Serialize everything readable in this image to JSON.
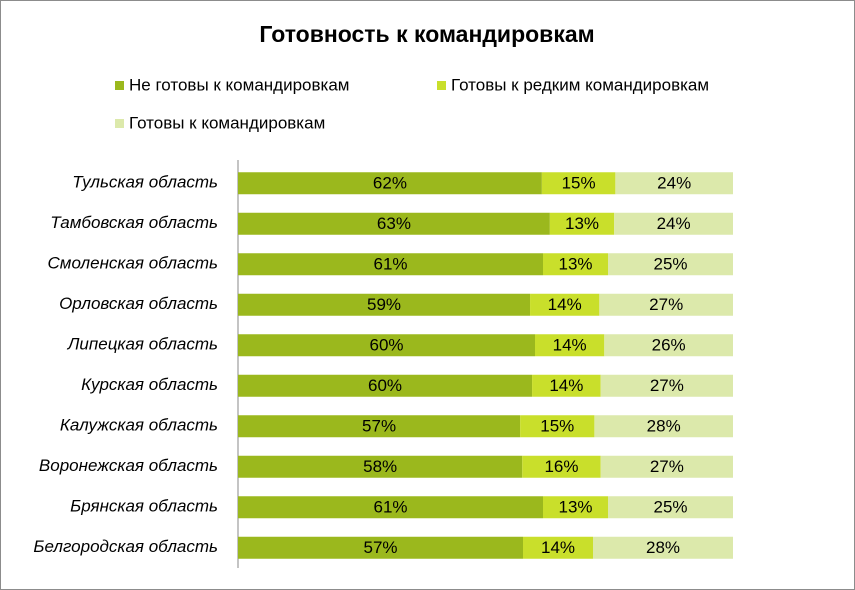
{
  "chart_data": {
    "type": "stacked-bar-horizontal",
    "stack": "percent",
    "title": "Готовность к командировкам",
    "categories": [
      "Тульская область",
      "Тамбовская область",
      "Смоленская область",
      "Орловская область",
      "Липецкая область",
      "Курская область",
      "Калужская область",
      "Воронежская область",
      "Брянская область",
      "Белгородская область"
    ],
    "series": [
      {
        "name": "Не готовы к командировкам",
        "color": "#9bb81d",
        "values": [
          62,
          63,
          61,
          59,
          60,
          60,
          57,
          58,
          61,
          57
        ],
        "value_labels": [
          "62%",
          "63%",
          "61%",
          "59%",
          "60%",
          "60%",
          "57%",
          "58%",
          "61%",
          "57%"
        ]
      },
      {
        "name": "Готовы к редким командировкам",
        "color": "#c9df2b",
        "values": [
          15,
          13,
          13,
          14,
          14,
          14,
          15,
          16,
          13,
          14
        ],
        "value_labels": [
          "15%",
          "13%",
          "13%",
          "14%",
          "14%",
          "14%",
          "15%",
          "16%",
          "13%",
          "14%"
        ]
      },
      {
        "name": "Готовы к командировкам",
        "color": "#dce9ab",
        "values": [
          24,
          24,
          25,
          27,
          26,
          27,
          28,
          27,
          25,
          28
        ],
        "value_labels": [
          "24%",
          "24%",
          "25%",
          "27%",
          "26%",
          "27%",
          "28%",
          "27%",
          "25%",
          "28%"
        ]
      }
    ]
  }
}
